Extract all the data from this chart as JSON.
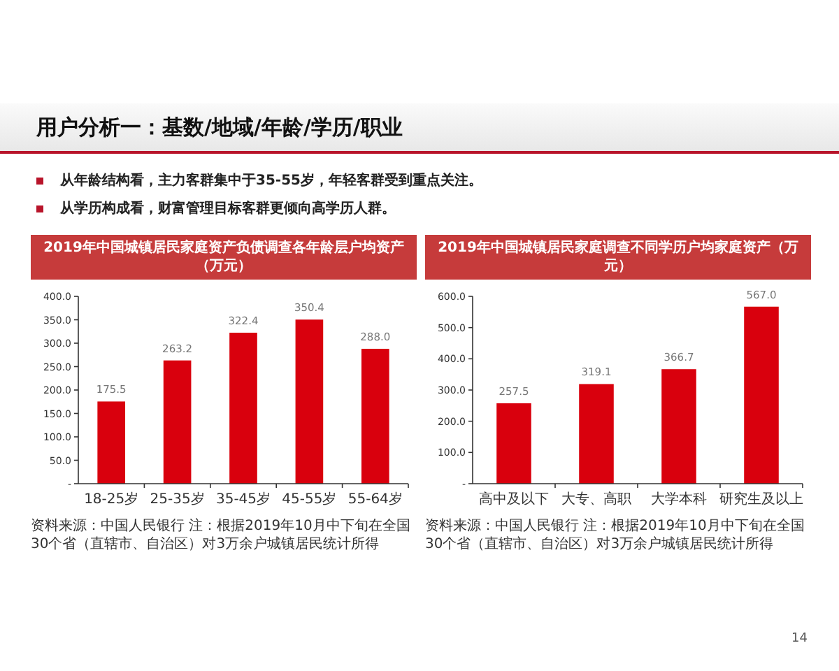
{
  "chart_data": [
    {
      "type": "other",
      "title": "用户分析一：基数/地域/年龄/学历/职业",
      "annotations": [
        "从年龄结构看，主力客群集中于35-55岁，年轻客群受到重点关注。",
        "从学历构成看，财富管理目标客群更倾向高学历人群。",
        "14"
      ]
    },
    {
      "type": "bar",
      "title": "2019年中国城镇居民家庭资产负债调查各年龄层户均资产（万元）",
      "categories": [
        "18-25岁",
        "25-35岁",
        "35-45岁",
        "45-55岁",
        "55-64岁"
      ],
      "values": [
        175.5,
        263.2,
        322.4,
        350.4,
        288.0
      ],
      "value_labels": [
        "175.5",
        "263.2",
        "322.4",
        "350.4",
        "288.0"
      ],
      "color": "#d9000d",
      "ylim": [
        0,
        400
      ],
      "yticks": [
        {
          "value": 0,
          "label": "-"
        },
        {
          "value": 50,
          "label": "50.0"
        },
        {
          "value": 100,
          "label": "100.0"
        },
        {
          "value": 150,
          "label": "150.0"
        },
        {
          "value": 200,
          "label": "200.0"
        },
        {
          "value": 250,
          "label": "250.0"
        },
        {
          "value": 300,
          "label": "300.0"
        },
        {
          "value": 350,
          "label": "350.0"
        },
        {
          "value": 400,
          "label": "400.0"
        }
      ],
      "annotations": [
        "资料来源：中国人民银行 注：根据2019年10月中下旬在全国30个省（直辖市、自治区）对3万余户城镇居民统计所得"
      ]
    },
    {
      "type": "bar",
      "title": "2019年中国城镇居民家庭调查不同学历户均家庭资产（万元）",
      "categories": [
        "高中及以下",
        "大专、高职",
        "大学本科",
        "研究生及以上"
      ],
      "values": [
        257.5,
        319.1,
        366.7,
        567.0
      ],
      "value_labels": [
        "257.5",
        "319.1",
        "366.7",
        "567.0"
      ],
      "color": "#d9000d",
      "ylim": [
        0,
        600
      ],
      "yticks": [
        {
          "value": 0,
          "label": "-"
        },
        {
          "value": 100,
          "label": "100.0"
        },
        {
          "value": 200,
          "label": "200.0"
        },
        {
          "value": 300,
          "label": "300.0"
        },
        {
          "value": 400,
          "label": "400.0"
        },
        {
          "value": 500,
          "label": "500.0"
        },
        {
          "value": 600,
          "label": "600.0"
        }
      ],
      "annotations": [
        "资料来源：中国人民银行 注：根据2019年10月中下旬在全国30个省（直辖市、自治区）对3万余户城镇居民统计所得"
      ]
    }
  ]
}
